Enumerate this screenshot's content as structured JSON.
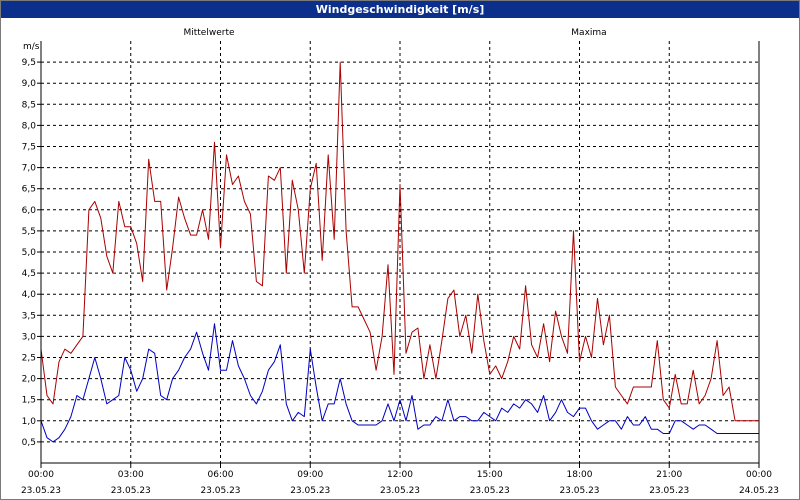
{
  "window": {
    "title": "Windgeschwindigkeit [m/s]"
  },
  "chart_data": {
    "type": "line",
    "title": "Windgeschwindigkeit [m/s]",
    "ylabel": "m/s",
    "ylim": [
      0,
      10
    ],
    "xlim_hours": [
      0,
      24
    ],
    "grid": true,
    "y_ticks": [
      "0,5",
      "1,0",
      "1,5",
      "2,0",
      "2,5",
      "3,0",
      "3,5",
      "4,0",
      "4,5",
      "5,0",
      "5,5",
      "6,0",
      "6,5",
      "7,0",
      "7,5",
      "8,0",
      "8,5",
      "9,0",
      "9,5"
    ],
    "x_ticks": [
      {
        "time": "00:00",
        "date": "23.05.23"
      },
      {
        "time": "03:00",
        "date": "23.05.23"
      },
      {
        "time": "06:00",
        "date": "23.05.23"
      },
      {
        "time": "09:00",
        "date": "23.05.23"
      },
      {
        "time": "12:00",
        "date": "23.05.23"
      },
      {
        "time": "15:00",
        "date": "23.05.23"
      },
      {
        "time": "18:00",
        "date": "23.05.23"
      },
      {
        "time": "21:00",
        "date": "23.05.23"
      },
      {
        "time": "00:00",
        "date": "24.05.23"
      }
    ],
    "series": [
      {
        "name": "Mittelwerte",
        "color": "#0000c0",
        "x_hours": [
          0,
          0.2,
          0.4,
          0.6,
          0.8,
          1.0,
          1.2,
          1.4,
          1.6,
          1.8,
          2.0,
          2.2,
          2.4,
          2.6,
          2.8,
          3.0,
          3.2,
          3.4,
          3.6,
          3.8,
          4.0,
          4.2,
          4.4,
          4.6,
          4.8,
          5.0,
          5.2,
          5.4,
          5.6,
          5.8,
          6.0,
          6.2,
          6.4,
          6.6,
          6.8,
          7.0,
          7.2,
          7.4,
          7.6,
          7.8,
          8.0,
          8.2,
          8.4,
          8.6,
          8.8,
          9.0,
          9.2,
          9.4,
          9.6,
          9.8,
          10.0,
          10.2,
          10.4,
          10.6,
          10.8,
          11.0,
          11.2,
          11.4,
          11.6,
          11.8,
          12.0,
          12.2,
          12.4,
          12.6,
          12.8,
          13.0,
          13.2,
          13.4,
          13.6,
          13.8,
          14.0,
          14.2,
          14.4,
          14.6,
          14.8,
          15.0,
          15.2,
          15.4,
          15.6,
          15.8,
          16.0,
          16.2,
          16.4,
          16.6,
          16.8,
          17.0,
          17.2,
          17.4,
          17.6,
          17.8,
          18.0,
          18.2,
          18.4,
          18.6,
          18.8,
          19.0,
          19.2,
          19.4,
          19.6,
          19.8,
          20.0,
          20.2,
          20.4,
          20.6,
          20.8,
          21.0,
          21.2,
          21.4,
          21.6,
          21.8,
          22.0,
          22.2,
          22.4,
          22.6,
          22.8,
          23.0,
          23.2,
          23.4,
          23.6,
          23.8,
          24.0
        ],
        "values": [
          1.0,
          0.6,
          0.5,
          0.6,
          0.8,
          1.1,
          1.6,
          1.5,
          2.0,
          2.5,
          2.0,
          1.4,
          1.5,
          1.6,
          2.5,
          2.2,
          1.7,
          2.0,
          2.7,
          2.6,
          1.6,
          1.5,
          2.0,
          2.2,
          2.5,
          2.7,
          3.1,
          2.6,
          2.2,
          3.3,
          2.2,
          2.2,
          2.9,
          2.3,
          2.0,
          1.6,
          1.4,
          1.7,
          2.2,
          2.4,
          2.8,
          1.4,
          1.0,
          1.2,
          1.1,
          2.7,
          1.8,
          1.0,
          1.4,
          1.4,
          2.0,
          1.4,
          1.0,
          0.9,
          0.9,
          0.9,
          0.9,
          1.0,
          1.4,
          1.0,
          1.5,
          1.0,
          1.6,
          0.8,
          0.9,
          0.9,
          1.1,
          1.0,
          1.5,
          1.0,
          1.1,
          1.1,
          1.0,
          1.0,
          1.2,
          1.1,
          1.0,
          1.3,
          1.2,
          1.4,
          1.3,
          1.5,
          1.4,
          1.2,
          1.6,
          1.0,
          1.2,
          1.5,
          1.2,
          1.1,
          1.3,
          1.3,
          1.0,
          0.8,
          0.9,
          1.0,
          1.0,
          0.8,
          1.1,
          0.9,
          0.9,
          1.1,
          0.8,
          0.8,
          0.7,
          0.7,
          1.0,
          1.0,
          0.9,
          0.8,
          0.9,
          0.9,
          0.8,
          0.7,
          0.7,
          0.7,
          0.7,
          0.7,
          0.7,
          0.7,
          0.7
        ]
      },
      {
        "name": "Maxima",
        "color": "#aa0000",
        "x_hours": [
          0,
          0.2,
          0.4,
          0.6,
          0.8,
          1.0,
          1.2,
          1.4,
          1.6,
          1.8,
          2.0,
          2.2,
          2.4,
          2.6,
          2.8,
          3.0,
          3.2,
          3.4,
          3.6,
          3.8,
          4.0,
          4.2,
          4.4,
          4.6,
          4.8,
          5.0,
          5.2,
          5.4,
          5.6,
          5.8,
          6.0,
          6.2,
          6.4,
          6.6,
          6.8,
          7.0,
          7.2,
          7.4,
          7.6,
          7.8,
          8.0,
          8.2,
          8.4,
          8.6,
          8.8,
          9.0,
          9.2,
          9.4,
          9.6,
          9.8,
          10.0,
          10.2,
          10.4,
          10.6,
          10.8,
          11.0,
          11.2,
          11.4,
          11.6,
          11.8,
          12.0,
          12.2,
          12.4,
          12.6,
          12.8,
          13.0,
          13.2,
          13.4,
          13.6,
          13.8,
          14.0,
          14.2,
          14.4,
          14.6,
          14.8,
          15.0,
          15.2,
          15.4,
          15.6,
          15.8,
          16.0,
          16.2,
          16.4,
          16.6,
          16.8,
          17.0,
          17.2,
          17.4,
          17.6,
          17.8,
          18.0,
          18.2,
          18.4,
          18.6,
          18.8,
          19.0,
          19.2,
          19.4,
          19.6,
          19.8,
          20.0,
          20.2,
          20.4,
          20.6,
          20.8,
          21.0,
          21.2,
          21.4,
          21.6,
          21.8,
          22.0,
          22.2,
          22.4,
          22.6,
          22.8,
          23.0,
          23.2,
          23.4,
          23.6,
          23.8,
          24.0
        ],
        "values": [
          2.7,
          1.6,
          1.4,
          2.4,
          2.7,
          2.6,
          2.8,
          3.0,
          6.0,
          6.2,
          5.8,
          4.9,
          4.5,
          6.2,
          5.6,
          5.6,
          5.2,
          4.3,
          7.2,
          6.2,
          6.2,
          4.1,
          5.1,
          6.3,
          5.8,
          5.4,
          5.4,
          6.0,
          5.3,
          7.6,
          5.1,
          7.3,
          6.6,
          6.8,
          6.2,
          5.9,
          4.3,
          4.2,
          6.8,
          6.7,
          7.0,
          4.5,
          6.7,
          6.0,
          4.5,
          6.5,
          7.1,
          4.8,
          7.3,
          5.3,
          9.5,
          5.5,
          3.7,
          3.7,
          3.4,
          3.1,
          2.2,
          3.0,
          4.7,
          2.1,
          6.6,
          2.6,
          3.1,
          3.2,
          2.0,
          2.8,
          2.0,
          2.9,
          3.9,
          4.1,
          3.0,
          3.5,
          2.6,
          4.0,
          2.9,
          2.1,
          2.3,
          2.0,
          2.4,
          3.0,
          2.7,
          4.2,
          2.8,
          2.5,
          3.3,
          2.4,
          3.6,
          3.0,
          2.6,
          5.5,
          2.4,
          3.0,
          2.5,
          3.9,
          2.8,
          3.5,
          1.8,
          1.6,
          1.4,
          1.8,
          1.8,
          1.8,
          1.8,
          2.9,
          1.5,
          1.3,
          2.1,
          1.4,
          1.4,
          2.2,
          1.4,
          1.6,
          2.0,
          2.9,
          1.6,
          1.8,
          1.0,
          1.0,
          1.0,
          1.0,
          1.0
        ]
      }
    ]
  }
}
